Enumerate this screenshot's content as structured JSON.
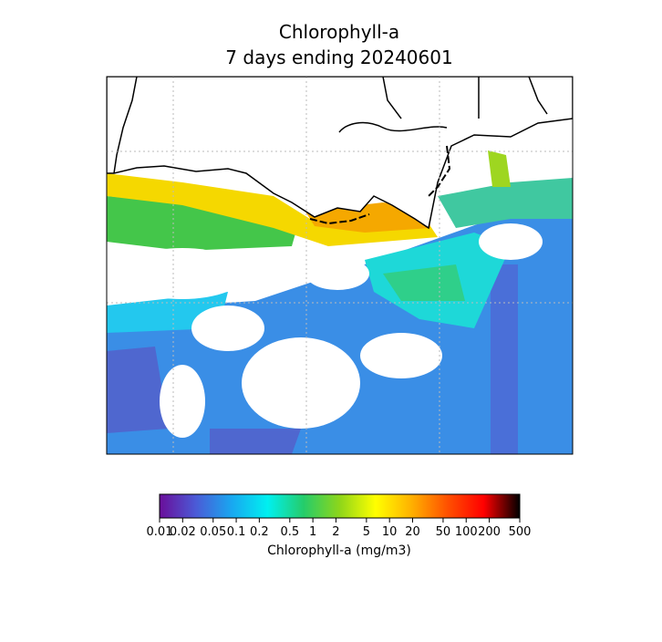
{
  "title": {
    "line1": "Chlorophyll-a",
    "line2": "7 days ending 20240601"
  },
  "colorbar": {
    "label": "Chlorophyll-a (mg/m3)",
    "scale": "log",
    "lim": [
      0.01,
      500
    ],
    "ticks": [
      0.01,
      0.02,
      0.05,
      0.1,
      0.2,
      0.5,
      1,
      2,
      5,
      10,
      20,
      50,
      100,
      200,
      500
    ],
    "colormap": [
      "#6a0e9a",
      "#4b5ad6",
      "#19a7f0",
      "#00f0f0",
      "#25cc6a",
      "#8ed61a",
      "#ffff00",
      "#ffb000",
      "#ff5000",
      "#ff0000",
      "#000000"
    ]
  }
}
